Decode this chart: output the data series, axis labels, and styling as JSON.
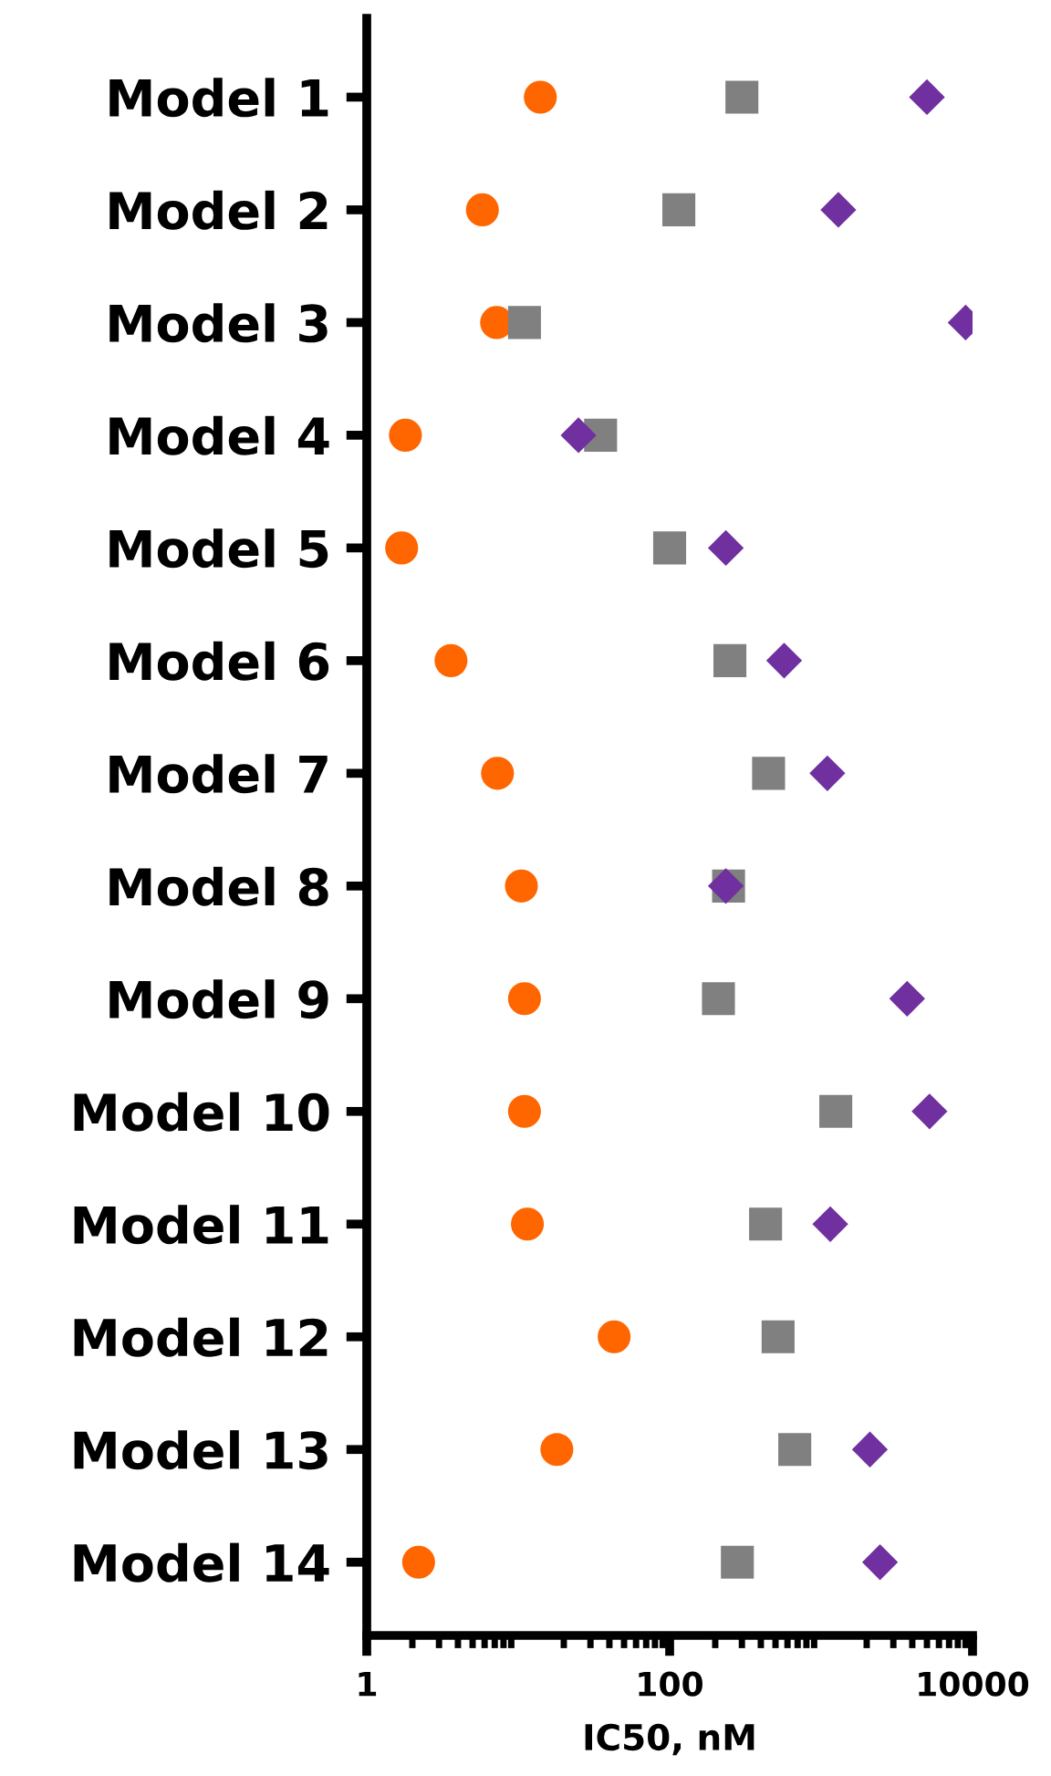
{
  "chart_data": {
    "type": "scatter",
    "xlabel": "IC50, nM",
    "log": "x",
    "orientation": "horizontal",
    "categories": [
      "Model 1",
      "Model 2",
      "Model 3",
      "Model 4",
      "Model 5",
      "Model 6",
      "Model 7",
      "Model 8",
      "Model 9",
      "Model 10",
      "Model 11",
      "Model 12",
      "Model 13",
      "Model 14"
    ],
    "xlim": [
      1,
      10000
    ],
    "xticks": [
      1,
      100,
      10000
    ],
    "grid": false,
    "legend": false,
    "series": [
      {
        "color": "#ff6600",
        "marker": "circle",
        "values": [
          14,
          5.8,
          7.2,
          1.8,
          1.7,
          3.6,
          7.3,
          10.5,
          11,
          11,
          11.5,
          43,
          18,
          2.2
        ]
      },
      {
        "color": "#808080",
        "marker": "square",
        "values": [
          300,
          115,
          11,
          35,
          100,
          250,
          450,
          245,
          210,
          1250,
          430,
          520,
          670,
          280
        ]
      },
      {
        "color": "#7030a0",
        "marker": "diamond",
        "values": [
          5000,
          1300,
          9000,
          25,
          235,
          570,
          1100,
          235,
          3700,
          5200,
          1150,
          null,
          2100,
          2450
        ]
      }
    ]
  }
}
